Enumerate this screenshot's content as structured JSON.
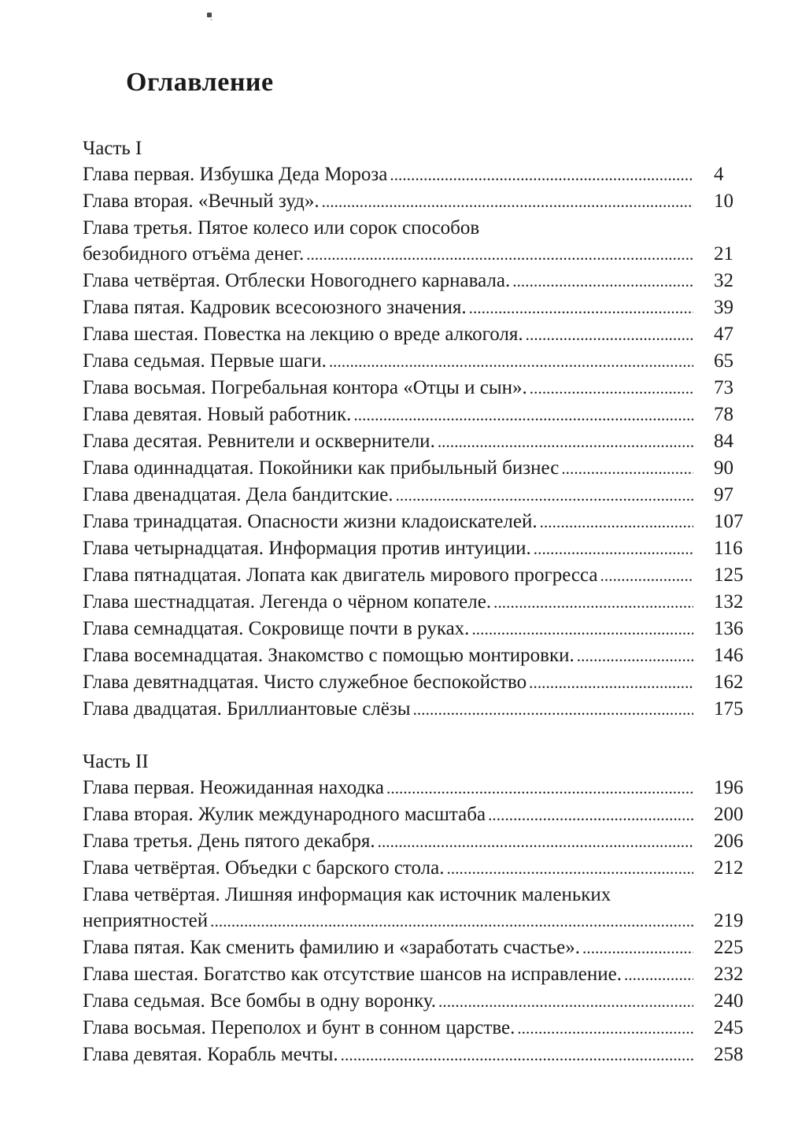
{
  "title": "Оглавление",
  "colors": {
    "text": "#1a1a1a",
    "background": "#ffffff"
  },
  "sections": [
    {
      "heading": "Часть I",
      "entries": [
        {
          "lines": [
            "Глава первая. Избушка Деда Мороза"
          ],
          "page": "4"
        },
        {
          "lines": [
            "Глава вторая. «Вечный зуд»."
          ],
          "page": "10"
        },
        {
          "lines": [
            "Глава третья. Пятое колесо или сорок способов",
            "безобидного отъёма денег."
          ],
          "page": "21"
        },
        {
          "lines": [
            "Глава четвёртая. Отблески Новогоднего карнавала."
          ],
          "page": "32"
        },
        {
          "lines": [
            "Глава пятая. Кадровик всесоюзного значения."
          ],
          "page": "39"
        },
        {
          "lines": [
            "Глава шестая. Повестка на лекцию о вреде алкоголя."
          ],
          "page": "47"
        },
        {
          "lines": [
            "Глава седьмая. Первые шаги."
          ],
          "page": "65"
        },
        {
          "lines": [
            "Глава восьмая. Погребальная контора «Отцы и сын»."
          ],
          "page": "73"
        },
        {
          "lines": [
            "Глава девятая. Новый работник."
          ],
          "page": "78"
        },
        {
          "lines": [
            "Глава десятая. Ревнители и осквернители."
          ],
          "page": "84"
        },
        {
          "lines": [
            "Глава одиннадцатая. Покойники как прибыльный бизнес"
          ],
          "page": "90"
        },
        {
          "lines": [
            "Глава двенадцатая. Дела бандитские."
          ],
          "page": "97"
        },
        {
          "lines": [
            "Глава тринадцатая. Опасности жизни кладоискателей."
          ],
          "page": "107"
        },
        {
          "lines": [
            "Глава четырнадцатая. Информация против интуиции."
          ],
          "page": "116"
        },
        {
          "lines": [
            "Глава пятнадцатая. Лопата как двигатель мирового прогресса"
          ],
          "page": "125"
        },
        {
          "lines": [
            "Глава шестнадцатая. Легенда о чёрном копателе."
          ],
          "page": "132"
        },
        {
          "lines": [
            "Глава семнадцатая. Сокровище почти в руках."
          ],
          "page": "136"
        },
        {
          "lines": [
            "Глава восемнадцатая. Знакомство с помощью монтировки."
          ],
          "page": "146"
        },
        {
          "lines": [
            "Глава девятнадцатая. Чисто служебное беспокойство"
          ],
          "page": "162"
        },
        {
          "lines": [
            "Глава двадцатая. Бриллиантовые слёзы"
          ],
          "page": "175"
        }
      ]
    },
    {
      "heading": "Часть II",
      "entries": [
        {
          "lines": [
            "Глава первая. Неожиданная находка"
          ],
          "page": "196"
        },
        {
          "lines": [
            "Глава вторая. Жулик международного масштаба"
          ],
          "page": "200"
        },
        {
          "lines": [
            "Глава третья. День пятого декабря."
          ],
          "page": "206"
        },
        {
          "lines": [
            "Глава четвёртая. Объедки с барского стола."
          ],
          "page": "212"
        },
        {
          "lines": [
            "Глава четвёртая. Лишняя информация как источник маленьких",
            "неприятностей"
          ],
          "page": "219"
        },
        {
          "lines": [
            "Глава пятая. Как сменить фамилию и «заработать счастье»."
          ],
          "page": "225"
        },
        {
          "lines": [
            "Глава шестая. Богатство как отсутствие шансов на исправление."
          ],
          "page": "232"
        },
        {
          "lines": [
            "Глава седьмая. Все бомбы в одну воронку."
          ],
          "page": "240"
        },
        {
          "lines": [
            "Глава восьмая. Переполох и бунт в сонном царстве."
          ],
          "page": "245"
        },
        {
          "lines": [
            "Глава девятая. Корабль мечты."
          ],
          "page": "258"
        }
      ]
    }
  ]
}
